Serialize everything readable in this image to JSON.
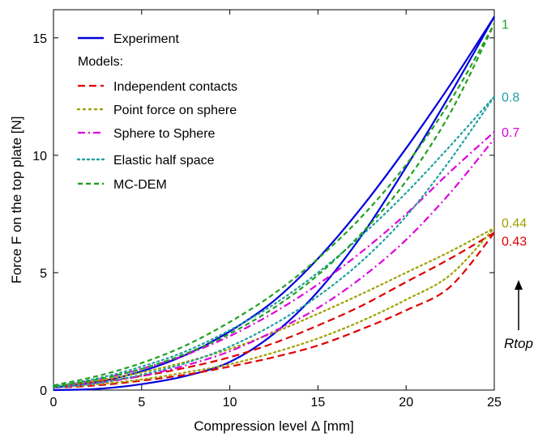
{
  "chart_data": {
    "type": "line",
    "title": "",
    "xlabel": "Compression level Δ [mm]",
    "ylabel": "Force F on the top plate [N]",
    "xlim": [
      0,
      25
    ],
    "ylim": [
      0,
      16.2
    ],
    "xticks": [
      0,
      5,
      10,
      15,
      20,
      25
    ],
    "yticks": [
      0,
      5,
      10,
      15
    ],
    "grid": false,
    "legend": {
      "placement": "top-left",
      "header": "Models:"
    },
    "series": [
      {
        "name": "Experiment",
        "color": "#0000dd",
        "dash": "solid",
        "branches": [
          {
            "x": [
              0,
              2.5,
              5,
              7.5,
              10,
              12.5,
              15,
              17.5,
              20,
              22.5,
              25
            ],
            "y": [
              0.1,
              0.35,
              0.8,
              1.5,
              2.5,
              3.8,
              5.6,
              7.8,
              10.3,
              13.0,
              15.9
            ]
          },
          {
            "x": [
              0,
              2.5,
              5,
              7.5,
              10,
              12.5,
              15,
              17.5,
              20,
              22.5,
              25
            ],
            "y": [
              0.0,
              0.05,
              0.25,
              0.6,
              1.2,
              2.4,
              4.2,
              6.6,
              9.5,
              12.6,
              15.9
            ]
          }
        ]
      },
      {
        "name": "Independent contacts",
        "color": "#e00000",
        "dash": "long-dash",
        "end_label": "0.43",
        "branches": [
          {
            "x": [
              0,
              2.5,
              5,
              7.5,
              10,
              12.5,
              15,
              17.5,
              20,
              22.5,
              25
            ],
            "y": [
              0.15,
              0.35,
              0.6,
              0.95,
              1.4,
              2.0,
              2.75,
              3.6,
              4.6,
              5.6,
              6.7
            ]
          },
          {
            "x": [
              0,
              2.5,
              5,
              7.5,
              10,
              12.5,
              15,
              17.5,
              20,
              22.5,
              25
            ],
            "y": [
              0.1,
              0.2,
              0.4,
              0.65,
              1.0,
              1.4,
              1.9,
              2.6,
              3.4,
              4.4,
              6.7
            ]
          }
        ]
      },
      {
        "name": "Point force on sphere",
        "color": "#a0a000",
        "dash": "dotted",
        "end_label": "0.44",
        "branches": [
          {
            "x": [
              0,
              2.5,
              5,
              7.5,
              10,
              12.5,
              15,
              17.5,
              20,
              22.5,
              25
            ],
            "y": [
              0.15,
              0.4,
              0.75,
              1.2,
              1.75,
              2.45,
              3.25,
              4.1,
              5.0,
              5.9,
              6.9
            ]
          },
          {
            "x": [
              0,
              2.5,
              5,
              7.5,
              10,
              12.5,
              15,
              17.5,
              20,
              22.5,
              25
            ],
            "y": [
              0.1,
              0.25,
              0.45,
              0.75,
              1.1,
              1.6,
              2.2,
              2.95,
              3.85,
              4.9,
              6.9
            ]
          }
        ]
      },
      {
        "name": "Sphere to Sphere",
        "color": "#dd00dd",
        "dash": "dash-dot",
        "end_label": "0.7",
        "branches": [
          {
            "x": [
              0,
              2.5,
              5,
              7.5,
              10,
              12.5,
              15,
              17.5,
              20,
              22.5,
              25
            ],
            "y": [
              0.15,
              0.45,
              0.9,
              1.5,
              2.3,
              3.3,
              4.5,
              5.9,
              7.5,
              9.3,
              11.0
            ]
          },
          {
            "x": [
              0,
              2.5,
              5,
              7.5,
              10,
              12.5,
              15,
              17.5,
              20,
              22.5,
              25
            ],
            "y": [
              0.1,
              0.3,
              0.6,
              1.05,
              1.65,
              2.5,
              3.5,
              4.8,
              6.4,
              8.4,
              10.7
            ]
          }
        ]
      },
      {
        "name": "Elastic half space",
        "color": "#20a0a0",
        "dash": "dotted",
        "end_label": "0.8",
        "branches": [
          {
            "x": [
              0,
              2.5,
              5,
              7.5,
              10,
              12.5,
              15,
              17.5,
              20,
              22.5,
              25
            ],
            "y": [
              0.15,
              0.5,
              1.0,
              1.65,
              2.55,
              3.65,
              5.0,
              6.6,
              8.4,
              10.4,
              12.5
            ]
          },
          {
            "x": [
              0,
              2.5,
              5,
              7.5,
              10,
              12.5,
              15,
              17.5,
              20,
              22.5,
              25
            ],
            "y": [
              0.1,
              0.3,
              0.65,
              1.15,
              1.85,
              2.8,
              4.0,
              5.5,
              7.4,
              9.8,
              12.5
            ]
          }
        ]
      },
      {
        "name": "MC-DEM",
        "color": "#20a020",
        "dash": "dashed",
        "end_label": "1",
        "branches": [
          {
            "x": [
              0,
              2.5,
              5,
              7.5,
              10,
              12.5,
              15,
              17.5,
              20,
              22.5,
              25
            ],
            "y": [
              0.2,
              0.6,
              1.15,
              1.9,
              2.9,
              4.1,
              5.6,
              7.4,
              9.6,
              12.3,
              15.6
            ]
          },
          {
            "x": [
              0,
              2.5,
              5,
              7.5,
              10,
              12.5,
              15,
              17.5,
              20,
              22.5,
              25
            ],
            "y": [
              0.15,
              0.45,
              0.9,
              1.55,
              2.4,
              3.5,
              4.9,
              6.7,
              8.9,
              11.8,
              15.6
            ]
          }
        ]
      }
    ],
    "side_annotation": {
      "label": "Rtop",
      "arrow": "up"
    }
  }
}
